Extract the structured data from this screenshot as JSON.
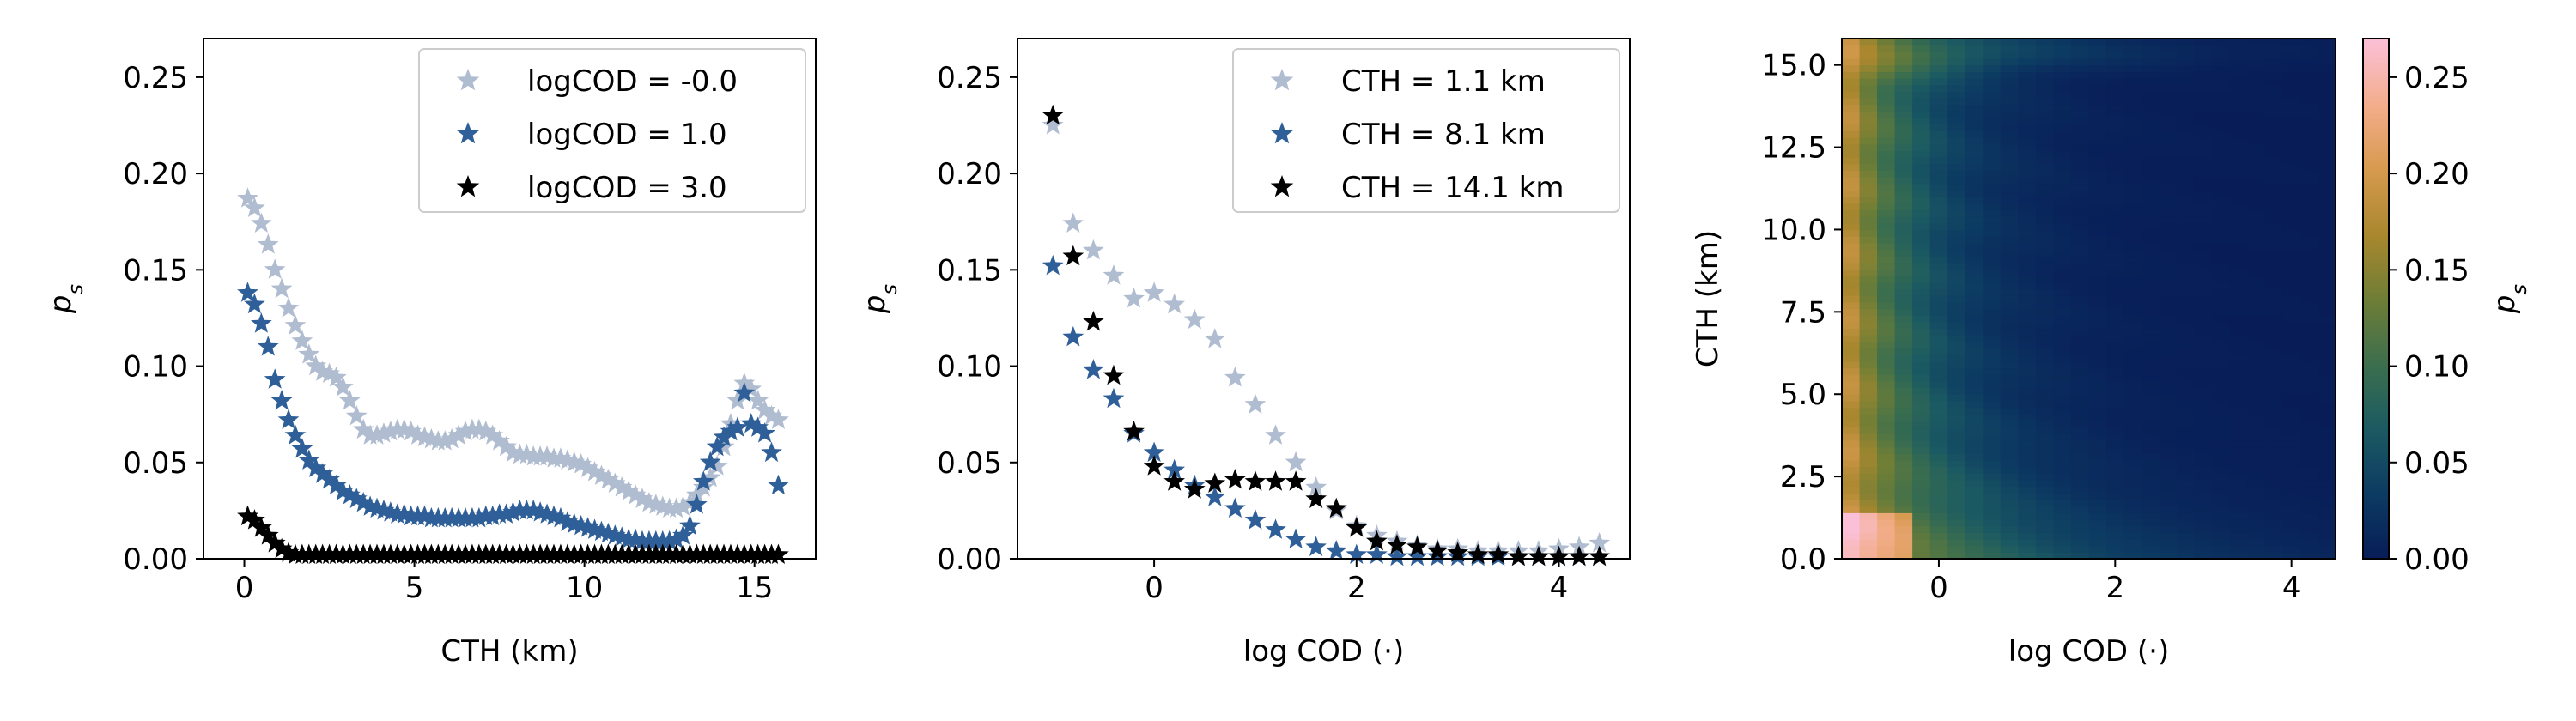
{
  "colors": {
    "light": "#b0bcd0",
    "mid": "#2f5f98",
    "dark": "#000000"
  },
  "chart_data": [
    {
      "type": "scatter",
      "xlabel": "CTH (km)",
      "ylabel": "p_s",
      "xlim": [
        -1.2,
        16.8
      ],
      "ylim": [
        0,
        0.27
      ],
      "xticks": [
        0,
        5,
        10,
        15
      ],
      "yticks": [
        0.0,
        0.05,
        0.1,
        0.15,
        0.2,
        0.25
      ],
      "legend": "top-right",
      "marker": "star",
      "series": [
        {
          "name": "logCOD = -0.0",
          "color": "#b0bcd0",
          "x": [
            0.1,
            0.3,
            0.5,
            0.7,
            0.9,
            1.1,
            1.3,
            1.5,
            1.7,
            1.9,
            2.1,
            2.3,
            2.5,
            2.7,
            2.9,
            3.1,
            3.3,
            3.5,
            3.7,
            3.9,
            4.1,
            4.3,
            4.5,
            4.7,
            4.9,
            5.1,
            5.3,
            5.5,
            5.7,
            5.9,
            6.1,
            6.3,
            6.5,
            6.7,
            6.9,
            7.1,
            7.3,
            7.5,
            7.7,
            7.9,
            8.1,
            8.3,
            8.5,
            8.7,
            8.9,
            9.1,
            9.3,
            9.5,
            9.7,
            9.9,
            10.1,
            10.3,
            10.5,
            10.7,
            10.9,
            11.1,
            11.3,
            11.5,
            11.7,
            11.9,
            12.1,
            12.3,
            12.5,
            12.7,
            12.9,
            13.1,
            13.3,
            13.5,
            13.7,
            13.9,
            14.1,
            14.3,
            14.5,
            14.7,
            14.9,
            15.1,
            15.3,
            15.5,
            15.7
          ],
          "y": [
            0.187,
            0.182,
            0.174,
            0.163,
            0.15,
            0.14,
            0.13,
            0.121,
            0.113,
            0.106,
            0.1,
            0.097,
            0.096,
            0.094,
            0.089,
            0.082,
            0.074,
            0.067,
            0.064,
            0.064,
            0.065,
            0.066,
            0.067,
            0.067,
            0.066,
            0.064,
            0.063,
            0.062,
            0.061,
            0.061,
            0.062,
            0.064,
            0.066,
            0.067,
            0.067,
            0.066,
            0.064,
            0.061,
            0.058,
            0.055,
            0.054,
            0.054,
            0.053,
            0.053,
            0.053,
            0.052,
            0.052,
            0.051,
            0.05,
            0.049,
            0.047,
            0.045,
            0.043,
            0.041,
            0.039,
            0.037,
            0.035,
            0.033,
            0.031,
            0.029,
            0.028,
            0.027,
            0.026,
            0.026,
            0.027,
            0.029,
            0.033,
            0.037,
            0.042,
            0.048,
            0.058,
            0.07,
            0.082,
            0.091,
            0.088,
            0.082,
            0.077,
            0.074,
            0.072
          ]
        },
        {
          "name": "logCOD = 1.0",
          "color": "#2f5f98",
          "x": [
            0.1,
            0.3,
            0.5,
            0.7,
            0.9,
            1.1,
            1.3,
            1.5,
            1.7,
            1.9,
            2.1,
            2.3,
            2.5,
            2.7,
            2.9,
            3.1,
            3.3,
            3.5,
            3.7,
            3.9,
            4.1,
            4.3,
            4.5,
            4.7,
            4.9,
            5.1,
            5.3,
            5.5,
            5.7,
            5.9,
            6.1,
            6.3,
            6.5,
            6.7,
            6.9,
            7.1,
            7.3,
            7.5,
            7.7,
            7.9,
            8.1,
            8.3,
            8.5,
            8.7,
            8.9,
            9.1,
            9.3,
            9.5,
            9.7,
            9.9,
            10.1,
            10.3,
            10.5,
            10.7,
            10.9,
            11.1,
            11.3,
            11.5,
            11.7,
            11.9,
            12.1,
            12.3,
            12.5,
            12.7,
            12.9,
            13.1,
            13.3,
            13.5,
            13.7,
            13.9,
            14.1,
            14.3,
            14.5,
            14.7,
            14.9,
            15.1,
            15.3,
            15.5,
            15.7
          ],
          "y": [
            0.138,
            0.132,
            0.122,
            0.11,
            0.093,
            0.082,
            0.072,
            0.064,
            0.057,
            0.051,
            0.047,
            0.044,
            0.041,
            0.038,
            0.035,
            0.033,
            0.031,
            0.029,
            0.027,
            0.026,
            0.025,
            0.024,
            0.023,
            0.023,
            0.022,
            0.022,
            0.022,
            0.021,
            0.021,
            0.021,
            0.021,
            0.021,
            0.021,
            0.021,
            0.021,
            0.022,
            0.022,
            0.023,
            0.023,
            0.024,
            0.025,
            0.025,
            0.025,
            0.024,
            0.023,
            0.022,
            0.021,
            0.019,
            0.018,
            0.017,
            0.016,
            0.015,
            0.014,
            0.013,
            0.012,
            0.011,
            0.01,
            0.01,
            0.009,
            0.009,
            0.009,
            0.009,
            0.009,
            0.01,
            0.012,
            0.017,
            0.028,
            0.04,
            0.05,
            0.058,
            0.063,
            0.066,
            0.068,
            0.086,
            0.07,
            0.068,
            0.065,
            0.055,
            0.038
          ]
        },
        {
          "name": "logCOD = 3.0",
          "color": "#000000",
          "x": [
            0.1,
            0.3,
            0.5,
            0.7,
            0.9,
            1.1,
            1.3,
            1.5,
            1.7,
            1.9,
            2.1,
            2.3,
            2.5,
            2.7,
            2.9,
            3.1,
            3.3,
            3.5,
            3.7,
            3.9,
            4.1,
            4.3,
            4.5,
            4.7,
            4.9,
            5.1,
            5.3,
            5.5,
            5.7,
            5.9,
            6.1,
            6.3,
            6.5,
            6.7,
            6.9,
            7.1,
            7.3,
            7.5,
            7.7,
            7.9,
            8.1,
            8.3,
            8.5,
            8.7,
            8.9,
            9.1,
            9.3,
            9.5,
            9.7,
            9.9,
            10.1,
            10.3,
            10.5,
            10.7,
            10.9,
            11.1,
            11.3,
            11.5,
            11.7,
            11.9,
            12.1,
            12.3,
            12.5,
            12.7,
            12.9,
            13.1,
            13.3,
            13.5,
            13.7,
            13.9,
            14.1,
            14.3,
            14.5,
            14.7,
            14.9,
            15.1,
            15.3,
            15.5,
            15.7
          ],
          "y": [
            0.022,
            0.02,
            0.016,
            0.012,
            0.008,
            0.005,
            0.003,
            0.002,
            0.002,
            0.002,
            0.002,
            0.002,
            0.002,
            0.002,
            0.002,
            0.002,
            0.002,
            0.002,
            0.002,
            0.002,
            0.002,
            0.002,
            0.002,
            0.002,
            0.002,
            0.002,
            0.002,
            0.002,
            0.002,
            0.002,
            0.002,
            0.002,
            0.002,
            0.002,
            0.002,
            0.002,
            0.002,
            0.002,
            0.002,
            0.002,
            0.002,
            0.002,
            0.002,
            0.002,
            0.002,
            0.002,
            0.002,
            0.002,
            0.002,
            0.002,
            0.002,
            0.002,
            0.002,
            0.002,
            0.002,
            0.002,
            0.002,
            0.002,
            0.002,
            0.002,
            0.002,
            0.002,
            0.002,
            0.002,
            0.002,
            0.002,
            0.002,
            0.002,
            0.002,
            0.002,
            0.002,
            0.002,
            0.002,
            0.002,
            0.002,
            0.002,
            0.002,
            0.002,
            0.002
          ]
        }
      ]
    },
    {
      "type": "scatter",
      "xlabel": "log COD (·)",
      "ylabel": "p_s",
      "xlim": [
        -1.35,
        4.7
      ],
      "ylim": [
        0,
        0.27
      ],
      "xticks": [
        0,
        2,
        4
      ],
      "yticks": [
        0.0,
        0.05,
        0.1,
        0.15,
        0.2,
        0.25
      ],
      "legend": "top-right",
      "marker": "star",
      "series": [
        {
          "name": "CTH = 1.1 km",
          "color": "#b0bcd0",
          "x": [
            -1.0,
            -0.8,
            -0.6,
            -0.4,
            -0.2,
            0.0,
            0.2,
            0.4,
            0.6,
            0.8,
            1.0,
            1.2,
            1.4,
            1.6,
            1.8,
            2.0,
            2.2,
            2.4,
            2.6,
            2.8,
            3.0,
            3.2,
            3.4,
            3.6,
            3.8,
            4.0,
            4.2,
            4.4
          ],
          "y": [
            0.225,
            0.174,
            0.16,
            0.147,
            0.135,
            0.138,
            0.132,
            0.124,
            0.114,
            0.094,
            0.08,
            0.064,
            0.05,
            0.037,
            0.025,
            0.017,
            0.012,
            0.009,
            0.007,
            0.005,
            0.005,
            0.004,
            0.004,
            0.004,
            0.004,
            0.005,
            0.006,
            0.008
          ]
        },
        {
          "name": "CTH = 8.1 km",
          "color": "#2f5f98",
          "x": [
            -1.0,
            -0.8,
            -0.6,
            -0.4,
            -0.2,
            0.0,
            0.2,
            0.4,
            0.6,
            0.8,
            1.0,
            1.2,
            1.4,
            1.6,
            1.8,
            2.0,
            2.2,
            2.4,
            2.6,
            2.8,
            3.0,
            3.2,
            3.4,
            3.6,
            3.8,
            4.0,
            4.2,
            4.4
          ],
          "y": [
            0.152,
            0.115,
            0.098,
            0.083,
            0.065,
            0.055,
            0.046,
            0.038,
            0.032,
            0.026,
            0.02,
            0.015,
            0.01,
            0.006,
            0.004,
            0.002,
            0.002,
            0.001,
            0.001,
            0.001,
            0.001,
            0.001,
            0.001,
            0.001,
            0.001,
            0.001,
            0.001,
            0.001
          ]
        },
        {
          "name": "CTH = 14.1 km",
          "color": "#000000",
          "x": [
            -1.0,
            -0.8,
            -0.6,
            -0.4,
            -0.2,
            0.0,
            0.2,
            0.4,
            0.6,
            0.8,
            1.0,
            1.2,
            1.4,
            1.6,
            1.8,
            2.0,
            2.2,
            2.4,
            2.6,
            2.8,
            3.0,
            3.2,
            3.4,
            3.6,
            3.8,
            4.0,
            4.2,
            4.4
          ],
          "y": [
            0.23,
            0.157,
            0.123,
            0.095,
            0.066,
            0.048,
            0.04,
            0.036,
            0.039,
            0.041,
            0.04,
            0.04,
            0.04,
            0.031,
            0.026,
            0.016,
            0.009,
            0.007,
            0.006,
            0.004,
            0.003,
            0.002,
            0.002,
            0.001,
            0.001,
            0.001,
            0.001,
            0.001
          ]
        }
      ]
    },
    {
      "type": "heatmap",
      "xlabel": "log COD (·)",
      "ylabel": "CTH (km)",
      "xlim": [
        -1.1,
        4.5
      ],
      "ylim": [
        0,
        15.8
      ],
      "xticks": [
        0,
        2,
        4
      ],
      "yticks": [
        0.0,
        2.5,
        5.0,
        7.5,
        10.0,
        12.5,
        15.0
      ],
      "x_bin_width": 0.2,
      "y_bin_width": 0.2,
      "colorbar": {
        "label": "p_s",
        "range": [
          0,
          0.27
        ],
        "ticks": [
          0.0,
          0.05,
          0.1,
          0.15,
          0.2,
          0.25
        ],
        "colormap": [
          "#081d58",
          "#0c3a62",
          "#1b5a62",
          "#3b6e4e",
          "#6f7e36",
          "#a8872e",
          "#d79a4f",
          "#f3ad8a",
          "#fbc0d8"
        ]
      },
      "description_of_values": "p_s is high (about 0.15-0.27) at low log COD (below ~0) at all CTH, decays toward 0 by log COD ~2; high values extend to larger log COD near CTH < 3 km and near CTH ~15 km."
    }
  ]
}
